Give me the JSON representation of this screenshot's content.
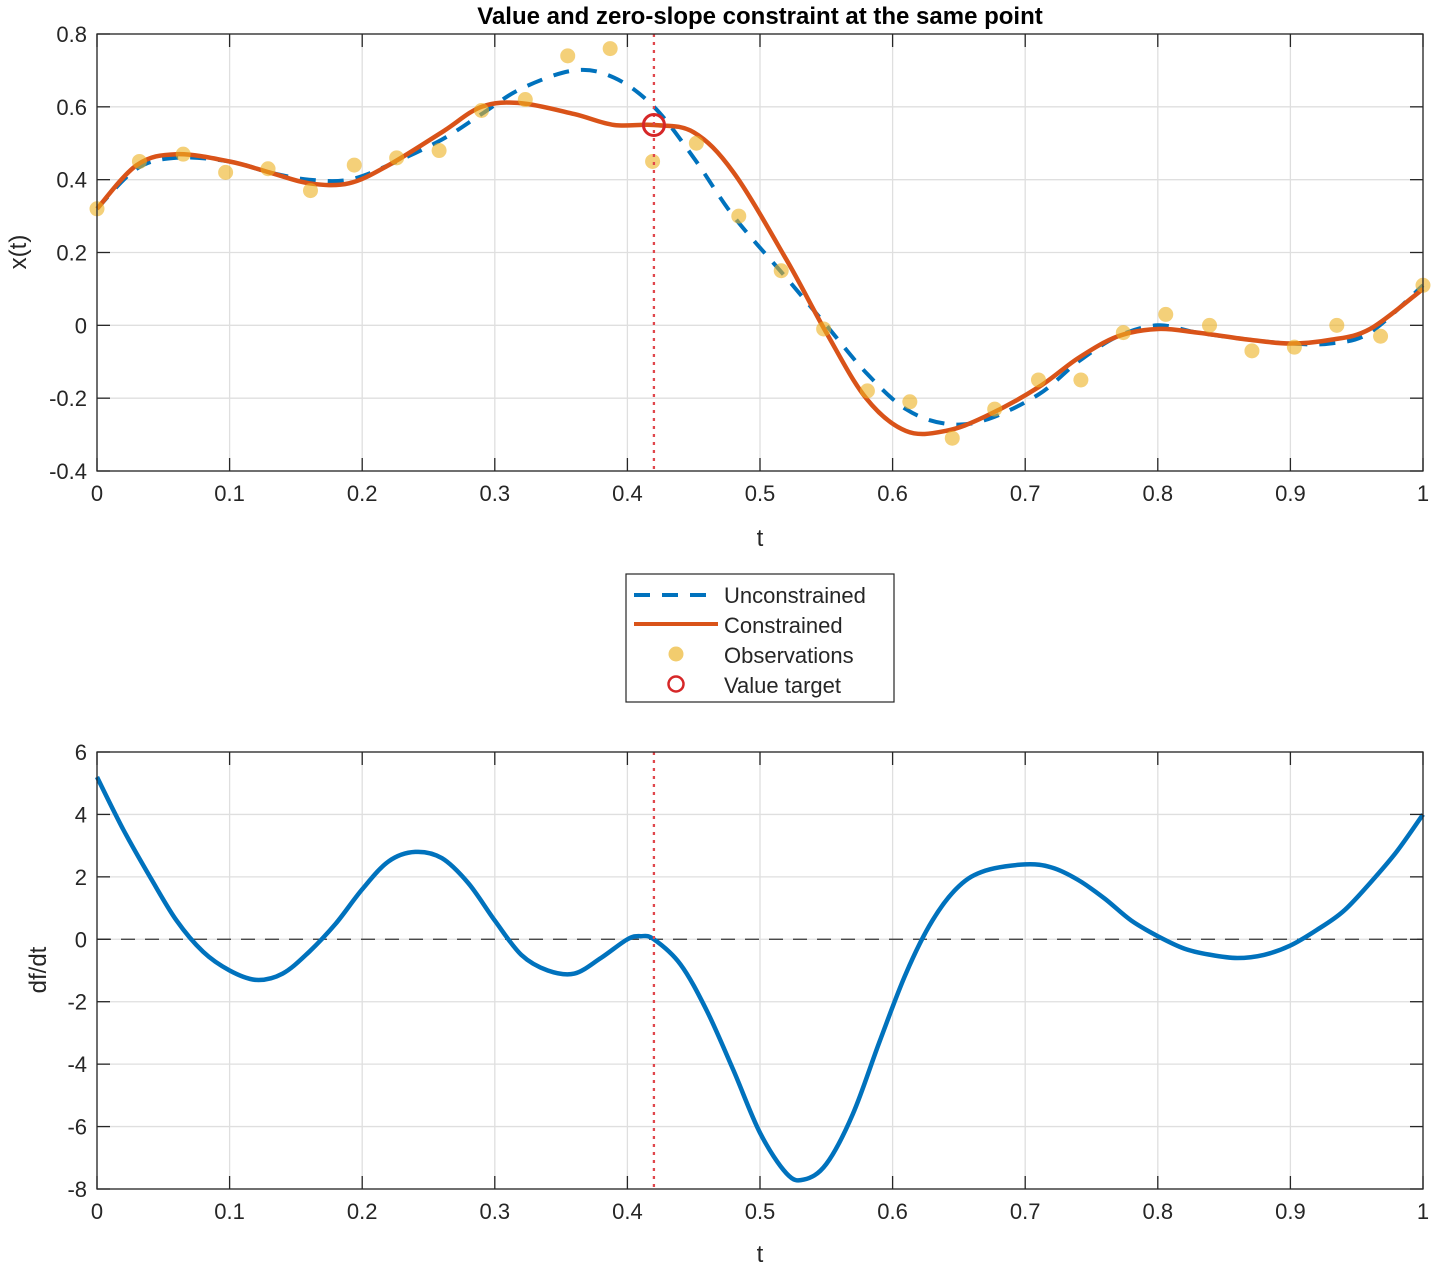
{
  "chart_data": [
    {
      "type": "line",
      "title": "Value and zero-slope constraint at the same point",
      "xlabel": "t",
      "ylabel": "x(t)",
      "xlim": [
        0,
        1
      ],
      "ylim": [
        -0.4,
        0.8
      ],
      "xticks": [
        "0",
        "0.1",
        "0.2",
        "0.3",
        "0.4",
        "0.5",
        "0.6",
        "0.7",
        "0.8",
        "0.9",
        "1"
      ],
      "yticks": [
        "-0.4",
        "-0.2",
        "0",
        "0.2",
        "0.4",
        "0.6",
        "0.8"
      ],
      "grid": true,
      "vline": {
        "t": 0.42,
        "style": "dotted",
        "color": "#e0474c"
      },
      "series": [
        {
          "name": "Unconstrained",
          "style": "dashed",
          "color": "#0072bd",
          "x": [
            0,
            0.03,
            0.06,
            0.1,
            0.13,
            0.16,
            0.19,
            0.22,
            0.26,
            0.29,
            0.32,
            0.36,
            0.39,
            0.42,
            0.45,
            0.48,
            0.52,
            0.55,
            0.58,
            0.61,
            0.64,
            0.67,
            0.71,
            0.74,
            0.77,
            0.8,
            0.83,
            0.87,
            0.9,
            0.93,
            0.96,
            1.0
          ],
          "values": [
            0.32,
            0.43,
            0.46,
            0.45,
            0.42,
            0.4,
            0.4,
            0.44,
            0.51,
            0.58,
            0.65,
            0.7,
            0.68,
            0.6,
            0.46,
            0.3,
            0.13,
            0.0,
            -0.13,
            -0.23,
            -0.27,
            -0.26,
            -0.19,
            -0.1,
            -0.03,
            0.0,
            -0.02,
            -0.04,
            -0.05,
            -0.05,
            -0.02,
            0.11
          ]
        },
        {
          "name": "Constrained",
          "style": "solid",
          "color": "#d95319",
          "x": [
            0,
            0.03,
            0.06,
            0.1,
            0.13,
            0.16,
            0.19,
            0.22,
            0.26,
            0.29,
            0.32,
            0.36,
            0.39,
            0.42,
            0.45,
            0.48,
            0.52,
            0.55,
            0.58,
            0.61,
            0.64,
            0.67,
            0.71,
            0.74,
            0.77,
            0.8,
            0.83,
            0.87,
            0.9,
            0.93,
            0.96,
            1.0
          ],
          "values": [
            0.32,
            0.44,
            0.47,
            0.45,
            0.42,
            0.39,
            0.39,
            0.44,
            0.53,
            0.6,
            0.61,
            0.58,
            0.55,
            0.55,
            0.53,
            0.42,
            0.18,
            -0.02,
            -0.2,
            -0.29,
            -0.29,
            -0.25,
            -0.17,
            -0.09,
            -0.03,
            -0.01,
            -0.02,
            -0.04,
            -0.05,
            -0.04,
            -0.01,
            0.1
          ]
        },
        {
          "name": "Observations",
          "style": "markers",
          "color": "#edb120",
          "x": [
            0.0,
            0.032,
            0.065,
            0.097,
            0.129,
            0.161,
            0.194,
            0.226,
            0.258,
            0.29,
            0.323,
            0.355,
            0.387,
            0.419,
            0.452,
            0.484,
            0.516,
            0.548,
            0.581,
            0.613,
            0.645,
            0.677,
            0.71,
            0.742,
            0.774,
            0.806,
            0.839,
            0.871,
            0.903,
            0.935,
            0.968,
            1.0
          ],
          "values": [
            0.32,
            0.45,
            0.47,
            0.42,
            0.43,
            0.37,
            0.44,
            0.46,
            0.48,
            0.59,
            0.62,
            0.74,
            0.76,
            0.45,
            0.5,
            0.3,
            0.15,
            -0.01,
            -0.18,
            -0.21,
            -0.31,
            -0.23,
            -0.15,
            -0.15,
            -0.02,
            0.03,
            0.0,
            -0.07,
            -0.06,
            0.0,
            -0.03,
            0.11
          ]
        },
        {
          "name": "Value target",
          "style": "circle-marker",
          "color": "#d62728",
          "x": [
            0.42
          ],
          "values": [
            0.55
          ]
        }
      ],
      "legend": {
        "position": "between-plots-center",
        "entries": [
          "Unconstrained",
          "Constrained",
          "Observations",
          "Value target"
        ]
      }
    },
    {
      "type": "line",
      "title": "",
      "xlabel": "t",
      "ylabel": "df/dt",
      "xlim": [
        0,
        1
      ],
      "ylim": [
        -8,
        6
      ],
      "xticks": [
        "0",
        "0.1",
        "0.2",
        "0.3",
        "0.4",
        "0.5",
        "0.6",
        "0.7",
        "0.8",
        "0.9",
        "1"
      ],
      "yticks": [
        "-8",
        "-6",
        "-4",
        "-2",
        "0",
        "2",
        "4",
        "6"
      ],
      "grid": true,
      "hline": {
        "y": 0,
        "style": "dashed",
        "color": "#000000"
      },
      "vline": {
        "t": 0.42,
        "style": "dotted",
        "color": "#e0474c"
      },
      "series": [
        {
          "name": "df/dt",
          "style": "solid",
          "color": "#0072bd",
          "x": [
            0,
            0.02,
            0.04,
            0.06,
            0.08,
            0.1,
            0.12,
            0.14,
            0.16,
            0.18,
            0.2,
            0.22,
            0.24,
            0.26,
            0.28,
            0.3,
            0.32,
            0.34,
            0.36,
            0.38,
            0.4,
            0.41,
            0.42,
            0.44,
            0.46,
            0.48,
            0.5,
            0.52,
            0.533,
            0.55,
            0.57,
            0.59,
            0.61,
            0.63,
            0.65,
            0.67,
            0.7,
            0.72,
            0.74,
            0.76,
            0.78,
            0.8,
            0.82,
            0.84,
            0.86,
            0.88,
            0.9,
            0.92,
            0.94,
            0.96,
            0.98,
            1.0
          ],
          "values": [
            5.2,
            3.5,
            2.0,
            0.6,
            -0.4,
            -1.0,
            -1.3,
            -1.1,
            -0.4,
            0.5,
            1.6,
            2.5,
            2.8,
            2.6,
            1.8,
            0.6,
            -0.5,
            -1.0,
            -1.1,
            -0.6,
            0.0,
            0.1,
            0.0,
            -0.8,
            -2.3,
            -4.2,
            -6.2,
            -7.5,
            -7.7,
            -7.2,
            -5.6,
            -3.3,
            -1.1,
            0.6,
            1.7,
            2.2,
            2.4,
            2.3,
            1.9,
            1.3,
            0.6,
            0.1,
            -0.3,
            -0.5,
            -0.6,
            -0.5,
            -0.2,
            0.3,
            0.9,
            1.8,
            2.8,
            4.0
          ]
        }
      ]
    }
  ],
  "figure": {
    "title": "Value and zero-slope constraint at the same point",
    "legend": {
      "items": [
        {
          "label": "Unconstrained",
          "color": "#0072bd",
          "style": "dashed"
        },
        {
          "label": "Constrained",
          "color": "#d95319",
          "style": "solid"
        },
        {
          "label": "Observations",
          "color": "#edb120",
          "style": "marker"
        },
        {
          "label": "Value target",
          "color": "#d62728",
          "style": "circle"
        }
      ]
    },
    "top": {
      "ylabel": "x(t)",
      "xlabel": "t"
    },
    "bottom": {
      "ylabel": "df/dt",
      "xlabel": "t"
    }
  }
}
